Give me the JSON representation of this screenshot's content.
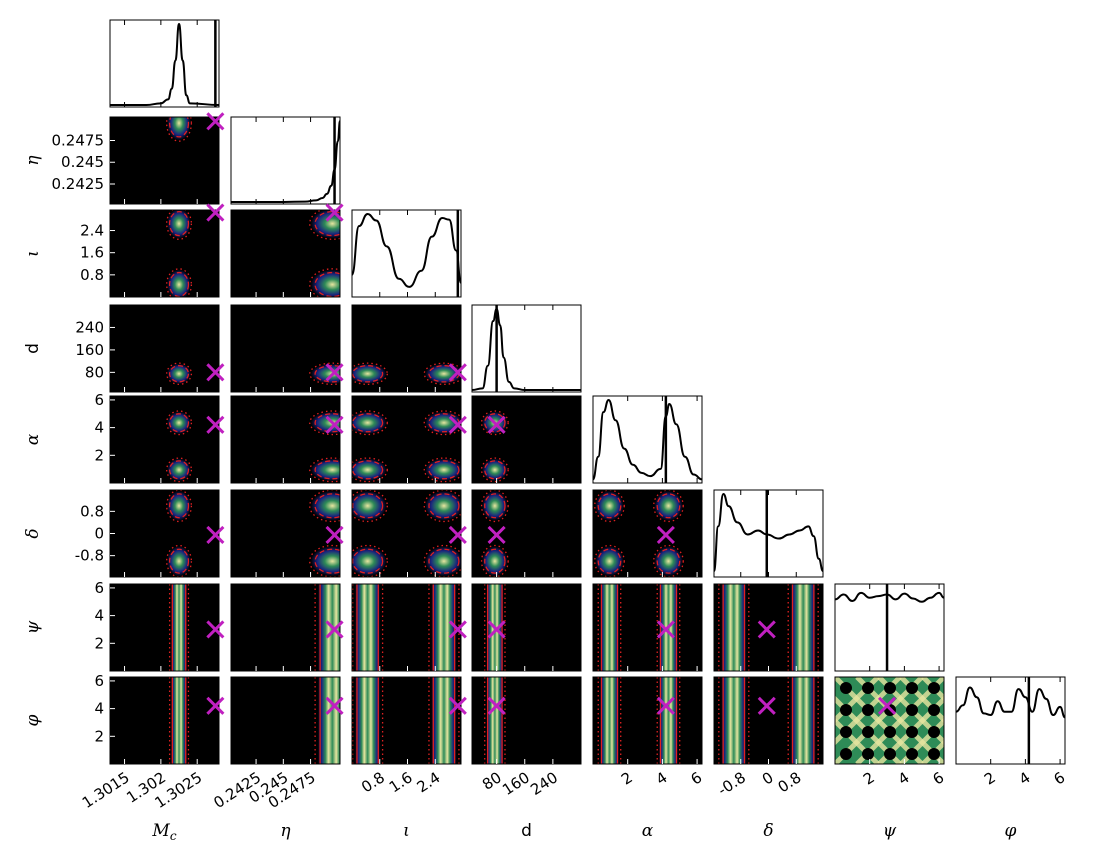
{
  "chart_data": {
    "type": "corner-plot",
    "title": "",
    "parameters": [
      {
        "key": "Mc",
        "label": "M_c",
        "label_main": "M",
        "label_sub": "c",
        "italic": true,
        "range": [
          1.3013,
          1.3028
        ],
        "ticks": [
          1.3015,
          1.302,
          1.3025
        ],
        "tick_labels": [
          "1.3015",
          "1.302",
          "1.3025"
        ],
        "injected": 1.30275,
        "marginal_peak": 1.30225,
        "marginal_width": 6e-05,
        "marginal_tail": 1.30205
      },
      {
        "key": "eta",
        "label": "η",
        "italic": true,
        "range": [
          0.2402,
          0.2502
        ],
        "ticks": [
          0.2425,
          0.245,
          0.2475
        ],
        "tick_labels": [
          "0.2425",
          "0.245",
          "0.2475"
        ],
        "injected": 0.2497
      },
      {
        "key": "iota",
        "label": "ι",
        "italic": true,
        "range": [
          0.0,
          3.1416
        ],
        "ticks": [
          0.8,
          1.6,
          2.4
        ],
        "tick_labels": [
          "0.8",
          "1.6",
          "2.4"
        ],
        "injected": 3.05
      },
      {
        "key": "d",
        "label": "d",
        "italic": false,
        "range": [
          10,
          320
        ],
        "ticks": [
          80,
          160,
          240
        ],
        "tick_labels": [
          "80",
          "160",
          "240"
        ],
        "injected": 80
      },
      {
        "key": "alpha",
        "label": "α",
        "italic": true,
        "range": [
          0.0,
          6.2832
        ],
        "ticks": [
          2,
          4,
          6
        ],
        "tick_labels": [
          "2",
          "4",
          "6"
        ],
        "injected": 4.2
      },
      {
        "key": "delta",
        "label": "δ",
        "italic": true,
        "range": [
          -1.5708,
          1.5708
        ],
        "ticks": [
          -0.8,
          0,
          0.8
        ],
        "tick_labels": [
          "-0.8",
          "0",
          "0.8"
        ],
        "injected": -0.05
      },
      {
        "key": "psi",
        "label": "ψ",
        "italic": true,
        "range": [
          0.0,
          6.2832
        ],
        "ticks": [
          2,
          4,
          6
        ],
        "tick_labels": [
          "2",
          "4",
          "6"
        ],
        "injected": 3.0
      },
      {
        "key": "phi",
        "label": "φ",
        "italic": true,
        "range": [
          0.0,
          6.2832
        ],
        "ticks": [
          2,
          4,
          6
        ],
        "tick_labels": [
          "2",
          "4",
          "6"
        ],
        "injected": 4.2
      }
    ],
    "marginals": [
      {
        "param": "Mc",
        "x": [
          1.3013,
          1.3018,
          1.302,
          1.3021,
          1.30215,
          1.3022,
          1.30225,
          1.3023,
          1.30235,
          1.3024,
          1.3028
        ],
        "y": [
          0,
          0,
          0.02,
          0.07,
          0.2,
          0.55,
          1.0,
          0.55,
          0.12,
          0.02,
          0
        ]
      },
      {
        "param": "eta",
        "x": [
          0.2402,
          0.245,
          0.247,
          0.248,
          0.2486,
          0.249,
          0.2494,
          0.2497,
          0.25,
          0.2502
        ],
        "y": [
          0,
          0,
          0.005,
          0.02,
          0.05,
          0.1,
          0.2,
          0.4,
          0.75,
          1.0
        ]
      },
      {
        "param": "iota",
        "x": [
          0,
          0.2,
          0.45,
          0.7,
          1.0,
          1.35,
          1.65,
          2.0,
          2.3,
          2.6,
          2.8,
          3.0,
          3.1416
        ],
        "y": [
          0.25,
          0.85,
          1.0,
          0.92,
          0.6,
          0.2,
          0.1,
          0.3,
          0.72,
          0.95,
          0.93,
          0.55,
          0.15
        ]
      },
      {
        "param": "d",
        "x": [
          10,
          40,
          55,
          70,
          80,
          90,
          100,
          115,
          130,
          160,
          320
        ],
        "y": [
          0,
          0.02,
          0.3,
          0.85,
          1.0,
          0.8,
          0.4,
          0.1,
          0.02,
          0,
          0
        ]
      },
      {
        "param": "alpha",
        "x": [
          0,
          0.3,
          0.6,
          0.9,
          1.3,
          1.8,
          2.3,
          2.8,
          3.3,
          3.9,
          4.2,
          4.4,
          4.8,
          5.3,
          5.8,
          6.2832
        ],
        "y": [
          0.02,
          0.3,
          0.85,
          1.0,
          0.75,
          0.4,
          0.2,
          0.1,
          0.06,
          0.15,
          0.8,
          0.95,
          0.7,
          0.3,
          0.08,
          0.02
        ]
      },
      {
        "param": "delta",
        "x": [
          -1.5708,
          -1.45,
          -1.3,
          -1.15,
          -0.9,
          -0.6,
          -0.3,
          -0.05,
          0.3,
          0.6,
          0.9,
          1.15,
          1.3,
          1.45,
          1.5708
        ],
        "y": [
          0.05,
          0.6,
          1.0,
          0.85,
          0.65,
          0.5,
          0.55,
          0.5,
          0.45,
          0.5,
          0.55,
          0.6,
          0.48,
          0.2,
          0.05
        ]
      },
      {
        "param": "psi",
        "x": [
          0,
          0.5,
          1,
          1.5,
          2,
          2.5,
          3,
          3.5,
          4,
          4.5,
          5,
          5.5,
          6,
          6.2832
        ],
        "y": [
          0.86,
          0.92,
          0.84,
          0.94,
          0.88,
          0.9,
          0.92,
          0.86,
          0.93,
          0.87,
          0.83,
          0.88,
          0.94,
          0.88
        ]
      },
      {
        "param": "phi",
        "x": [
          0,
          0.4,
          0.8,
          1.2,
          1.6,
          2.0,
          2.4,
          2.8,
          3.2,
          3.6,
          4.0,
          4.4,
          4.8,
          5.2,
          5.6,
          6.0,
          6.2832
        ],
        "y": [
          0.62,
          0.7,
          0.92,
          0.8,
          0.6,
          0.58,
          0.75,
          0.62,
          0.62,
          0.9,
          0.8,
          0.62,
          0.9,
          0.78,
          0.58,
          0.68,
          0.55
        ]
      }
    ],
    "joint_panels": "lower-triangle density plots with dashed/dotted credible contours and injection cross",
    "colors": {
      "marginal_line": "#000000",
      "injection_cross": "#c020c0",
      "contour": "#e02020",
      "density_background": "#000000",
      "density_low": "#1a237e",
      "density_mid": "#2e8b57",
      "density_high": "#e8e6a0"
    }
  }
}
